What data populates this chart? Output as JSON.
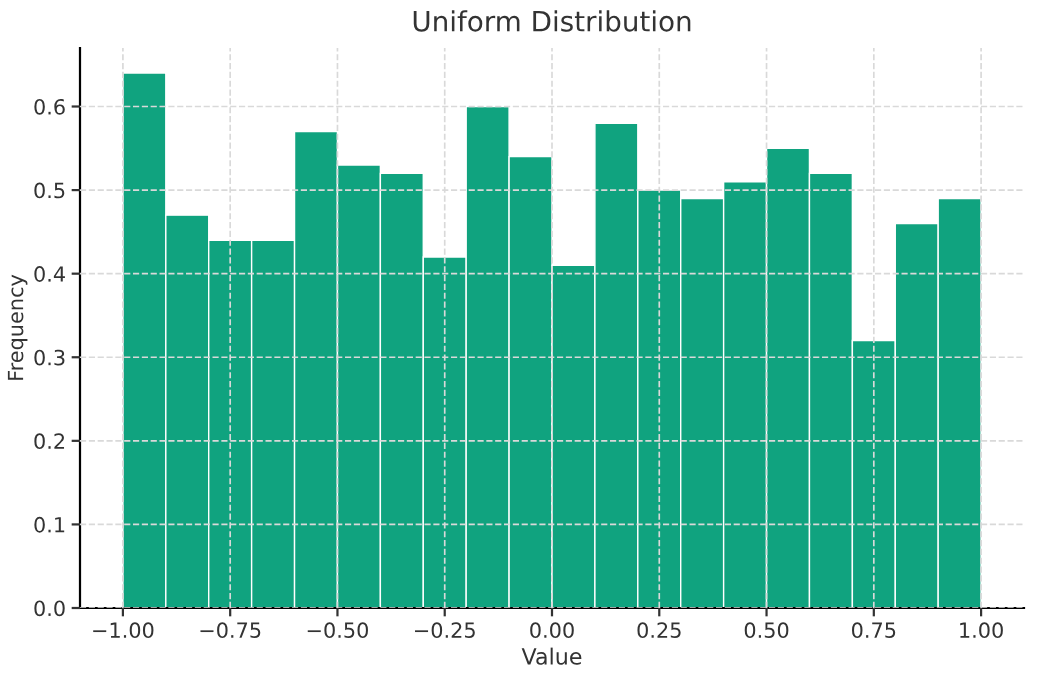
{
  "chart_data": {
    "type": "histogram",
    "title": "Uniform Distribution",
    "xlabel": "Value",
    "ylabel": "Frequency",
    "bins": [
      -1.0,
      -0.9,
      -0.8,
      -0.7,
      -0.6,
      -0.5,
      -0.4,
      -0.3,
      -0.2,
      -0.1,
      0.0,
      0.1,
      0.2,
      0.3,
      0.4,
      0.5,
      0.6,
      0.7,
      0.8,
      0.9,
      1.0
    ],
    "values": [
      0.64,
      0.47,
      0.44,
      0.44,
      0.57,
      0.53,
      0.52,
      0.42,
      0.6,
      0.54,
      0.41,
      0.58,
      0.5,
      0.49,
      0.51,
      0.55,
      0.52,
      0.32,
      0.46,
      0.49
    ],
    "color": "#10a37f",
    "xlim": [
      -1.1,
      1.1
    ],
    "ylim": [
      0,
      0.67
    ],
    "xticks": [
      {
        "value": -1.0,
        "label": "−1.00"
      },
      {
        "value": -0.75,
        "label": "−0.75"
      },
      {
        "value": -0.5,
        "label": "−0.50"
      },
      {
        "value": -0.25,
        "label": "−0.25"
      },
      {
        "value": 0.0,
        "label": "0.00"
      },
      {
        "value": 0.25,
        "label": "0.25"
      },
      {
        "value": 0.5,
        "label": "0.50"
      },
      {
        "value": 0.75,
        "label": "0.75"
      },
      {
        "value": 1.0,
        "label": "1.00"
      }
    ],
    "yticks": [
      {
        "value": 0,
        "label": "0.0"
      },
      {
        "value": 0.1,
        "label": "0.1"
      },
      {
        "value": 0.2,
        "label": "0.2"
      },
      {
        "value": 0.3,
        "label": "0.3"
      },
      {
        "value": 0.4,
        "label": "0.4"
      },
      {
        "value": 0.5,
        "label": "0.5"
      },
      {
        "value": 0.6,
        "label": "0.6"
      }
    ],
    "grid": true
  }
}
